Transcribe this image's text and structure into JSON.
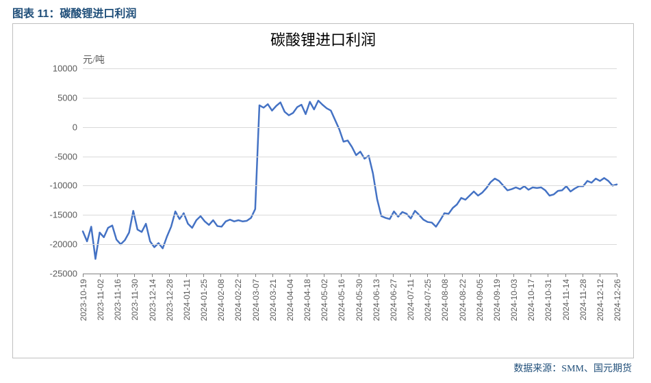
{
  "caption": "图表 11：碳酸锂进口利润",
  "chart": {
    "type": "line",
    "title": "碳酸锂进口利润",
    "title_fontsize": 22,
    "y_unit_label": "元/吨",
    "ylim": [
      -25000,
      10000
    ],
    "ytick_step": 5000,
    "yticks": [
      -25000,
      -20000,
      -15000,
      -10000,
      -5000,
      0,
      5000,
      10000
    ],
    "line_color": "#4472c4",
    "line_width": 2.5,
    "grid_color": "#d9d9d9",
    "axis_color": "#808080",
    "background_color": "#ffffff",
    "border_color": "#bfbfbf",
    "label_color": "#595959",
    "label_fontsize": 13,
    "xlabel_fontsize": 12,
    "x_labels": [
      "2023-10-19",
      "2023-11-02",
      "2023-11-16",
      "2023-11-30",
      "2023-12-14",
      "2023-12-28",
      "2024-01-11",
      "2024-01-25",
      "2024-02-08",
      "2024-02-22",
      "2024-03-07",
      "2024-03-21",
      "2024-04-04",
      "2024-04-18",
      "2024-05-02",
      "2024-05-16",
      "2024-05-30",
      "2024-06-13",
      "2024-06-27",
      "2024-07-11",
      "2024-07-25",
      "2024-08-08",
      "2024-08-22",
      "2024-09-05",
      "2024-09-19",
      "2024-10-03",
      "2024-10-17",
      "2024-10-31",
      "2024-11-14",
      "2024-11-28",
      "2024-12-12",
      "2024-12-26"
    ],
    "series": [
      {
        "name": "碳酸锂进口利润",
        "color": "#4472c4",
        "x": [
          0,
          1,
          2,
          3,
          4,
          5,
          6,
          7,
          8,
          9,
          10,
          11,
          12,
          13,
          14,
          15,
          16,
          17,
          18,
          19,
          20,
          21,
          22,
          23,
          24,
          25,
          26,
          27,
          28,
          29,
          30,
          31,
          32,
          33,
          34,
          35,
          36,
          37,
          38,
          39,
          40,
          41,
          42,
          43,
          44,
          45,
          46,
          47,
          48,
          49,
          50,
          51,
          52,
          53,
          54,
          55,
          56,
          57,
          58,
          59,
          60,
          61,
          62,
          63,
          64,
          65,
          66,
          67,
          68,
          69,
          70,
          71,
          72,
          73,
          74,
          75,
          76,
          77,
          78,
          79,
          80,
          81,
          82,
          83,
          84,
          85,
          86,
          87,
          88,
          89,
          90,
          91,
          92,
          93,
          94,
          95,
          96,
          97,
          98,
          99,
          100,
          101,
          102,
          103,
          104,
          105,
          106,
          107,
          108,
          109,
          110,
          111,
          112,
          113,
          114,
          115,
          116,
          117,
          118,
          119,
          120,
          121,
          122,
          123,
          124,
          125,
          126,
          127
        ],
        "y": [
          -17800,
          -19500,
          -17000,
          -22500,
          -18000,
          -18800,
          -17200,
          -16800,
          -19200,
          -20000,
          -19300,
          -18000,
          -14300,
          -17500,
          -17900,
          -16500,
          -19500,
          -20500,
          -19800,
          -20700,
          -18700,
          -17000,
          -14400,
          -15700,
          -14700,
          -16500,
          -17200,
          -15900,
          -15200,
          -16100,
          -16700,
          -15900,
          -16900,
          -17000,
          -16100,
          -15800,
          -16100,
          -15900,
          -16100,
          -16000,
          -15500,
          -14000,
          3700,
          3300,
          3900,
          2800,
          3600,
          4200,
          2600,
          2000,
          2400,
          3400,
          3800,
          2200,
          4300,
          3000,
          4500,
          3800,
          3200,
          2800,
          1200,
          -400,
          -2500,
          -2300,
          -3400,
          -4800,
          -4200,
          -5400,
          -4900,
          -7900,
          -12300,
          -15200,
          -15500,
          -15700,
          -14400,
          -15300,
          -14500,
          -14800,
          -15600,
          -14300,
          -15000,
          -15800,
          -16200,
          -16300,
          -17000,
          -15900,
          -14700,
          -14800,
          -13800,
          -13200,
          -12100,
          -12400,
          -11700,
          -11000,
          -11700,
          -11200,
          -10400,
          -9400,
          -8800,
          -9200,
          -10000,
          -10800,
          -10600,
          -10300,
          -10600,
          -10100,
          -10700,
          -10300,
          -10400,
          -10300,
          -10800,
          -11700,
          -11500,
          -10900,
          -10800,
          -10100,
          -11000,
          -10500,
          -10100,
          -10100,
          -9200,
          -9500,
          -8800,
          -9200,
          -8700,
          -9200,
          -10000,
          -9800
        ]
      }
    ]
  },
  "source_label": "数据来源：SMM、国元期货"
}
